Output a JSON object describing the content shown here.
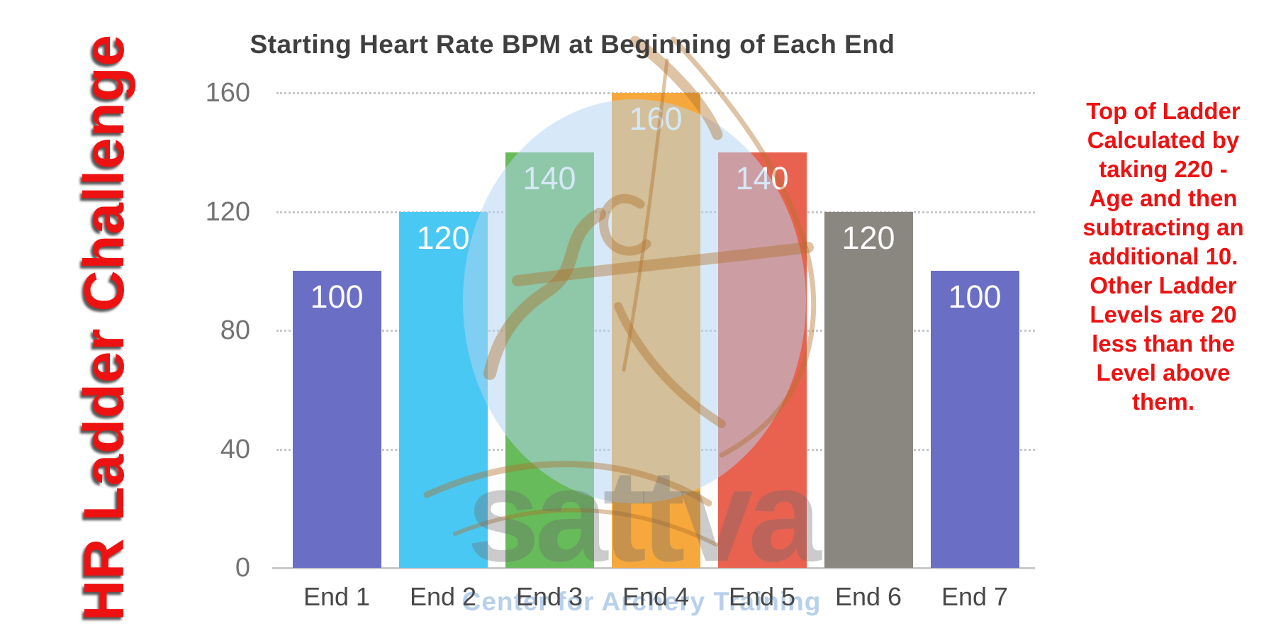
{
  "page": {
    "background": "#FFFFFF",
    "accent_red": "#EE1111"
  },
  "left_banner": {
    "text": "HR Ladder Challenge",
    "color": "#EE1111"
  },
  "right_note": {
    "color": "#EE1111",
    "lines": [
      "Top of Ladder",
      "Calculated by",
      "taking 220 -",
      "Age and then",
      "subtracting an",
      "additional 10.",
      "Other Ladder",
      "Levels are 20",
      "less than the",
      "Level above",
      "them."
    ]
  },
  "chart_data": {
    "type": "bar",
    "title": "Starting Heart Rate BPM at Beginning of Each End",
    "categories": [
      "End 1",
      "End 2",
      "End 3",
      "End 4",
      "End 5",
      "End 6",
      "End 7"
    ],
    "values": [
      100,
      120,
      140,
      160,
      140,
      120,
      100
    ],
    "bar_colors": [
      "#6A6EC4",
      "#4AC8F4",
      "#67BB5B",
      "#F7A83C",
      "#E96250",
      "#8A8680",
      "#6A6EC4"
    ],
    "value_label_color": "#FCFCFC",
    "xlabel": "",
    "ylabel": "",
    "y_ticks": [
      0,
      40,
      80,
      120,
      160
    ],
    "ylim": [
      0,
      160
    ],
    "grid": "horizontal-dotted",
    "legend": "none",
    "title_color": "#3F3F3F"
  },
  "watermark": {
    "word": "sattva",
    "subtitle": "Center for Archery Training",
    "circle_color": "#B2D4F2",
    "archer_color": "#B07028",
    "word_color": "#696969",
    "subtitle_color": "#AAC8E7"
  }
}
